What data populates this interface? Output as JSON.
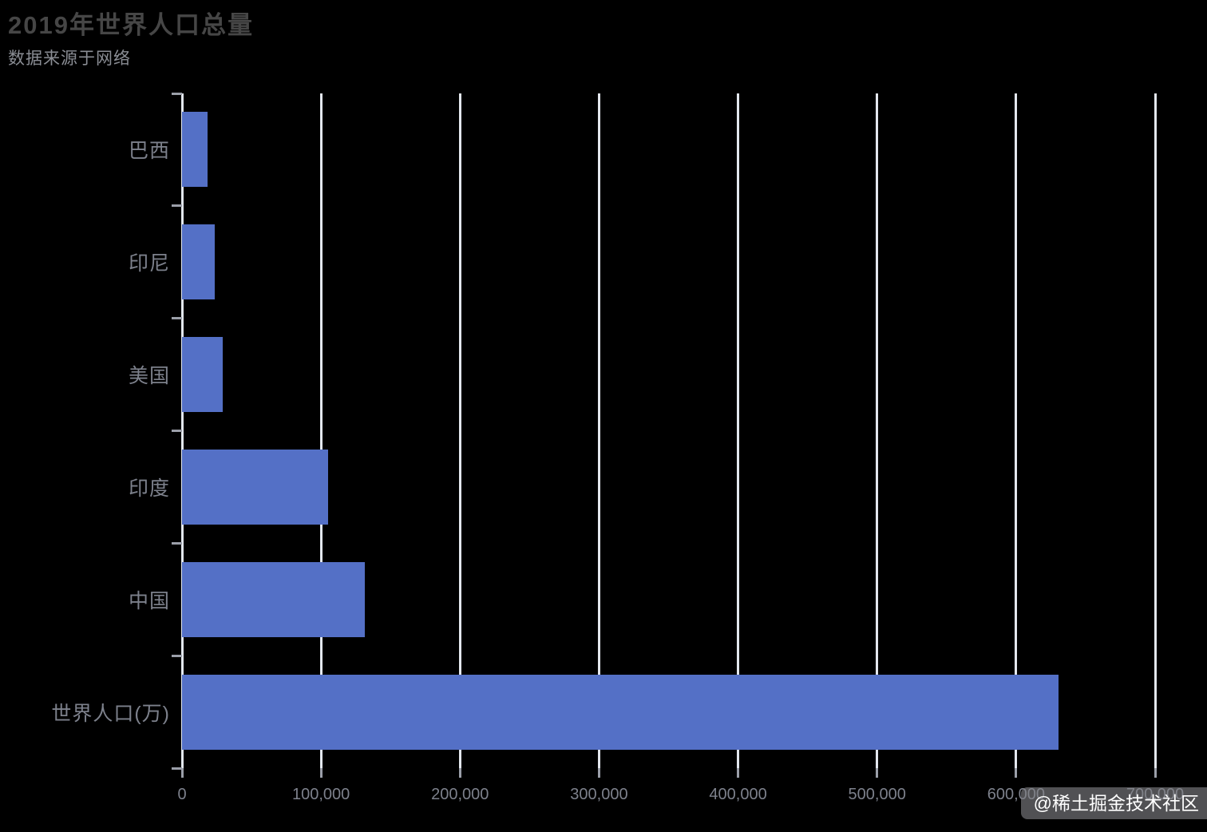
{
  "chart_data": {
    "type": "bar",
    "orientation": "horizontal",
    "title": "2019年世界人口总量",
    "subtitle": "数据来源于网络",
    "categories": [
      "巴西",
      "印尼",
      "美国",
      "印度",
      "中国",
      "世界人口(万)"
    ],
    "values": [
      18203,
      23489,
      29034,
      104970,
      131744,
      630230
    ],
    "xlabel": "",
    "ylabel": "",
    "xlim": [
      0,
      700000
    ],
    "x_ticks": [
      0,
      100000,
      200000,
      300000,
      400000,
      500000,
      600000,
      700000
    ],
    "x_tick_labels": [
      "0",
      "100,000",
      "200,000",
      "300,000",
      "400,000",
      "500,000",
      "600,000",
      "700,000"
    ],
    "grid": true,
    "legend": "none",
    "bar_color": "#5470C6",
    "gridline_color": "#E3E7EE",
    "background_color": "#000000",
    "title_color": "#464646",
    "subtitle_color": "#8A8D94",
    "axis_label_color": "#7D818C"
  },
  "watermark": {
    "text": "@稀土掘金技术社区"
  }
}
